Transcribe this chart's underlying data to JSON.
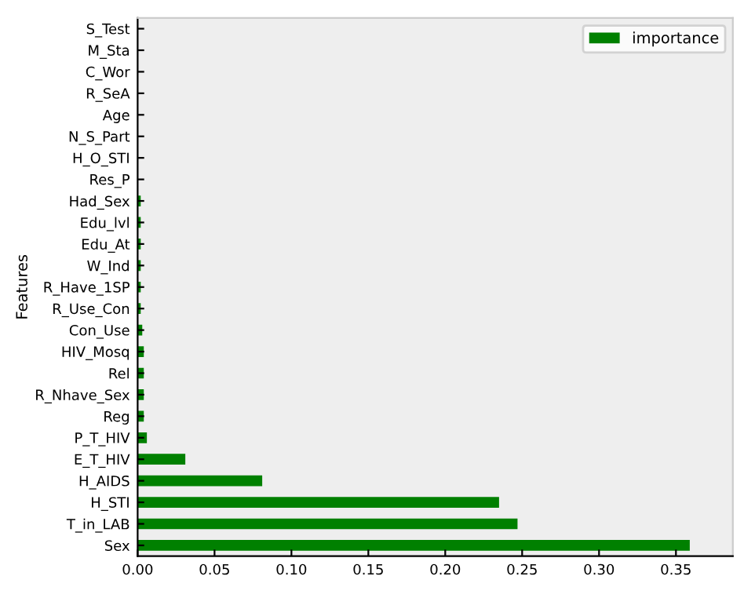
{
  "chart_data": {
    "type": "bar",
    "orientation": "horizontal",
    "ylabel": "Features",
    "legend": "top right",
    "grid": false,
    "categories": [
      "S_Test",
      "M_Sta",
      "C_Wor",
      "R_SeA",
      "Age",
      "N_S_Part",
      "H_O_STI",
      "Res_P",
      "Had_Sex",
      "Edu_lvl",
      "Edu_At",
      "W_Ind",
      "R_Have_1SP",
      "R_Use_Con",
      "Con_Use",
      "HIV_Mosq",
      "Rel",
      "R_Nhave_Sex",
      "Reg",
      "P_T_HIV",
      "E_T_HIV",
      "H_AIDS",
      "H_STI",
      "T_in_LAB",
      "Sex"
    ],
    "series": [
      {
        "name": "importance",
        "color": "#008000",
        "values": [
          0,
          0,
          0,
          0,
          0,
          0,
          0,
          0,
          0.002,
          0.002,
          0.002,
          0.002,
          0.002,
          0.002,
          0.003,
          0.004,
          0.004,
          0.004,
          0.004,
          0.006,
          0.031,
          0.081,
          0.235,
          0.247,
          0.359
        ]
      }
    ],
    "xlim": [
      0,
      0.387
    ],
    "xticks": [
      {
        "value": 0,
        "label": "0.00"
      },
      {
        "value": 0.05,
        "label": "0.05"
      },
      {
        "value": 0.1,
        "label": "0.10"
      },
      {
        "value": 0.15,
        "label": "0.15"
      },
      {
        "value": 0.2,
        "label": "0.20"
      },
      {
        "value": 0.25,
        "label": "0.25"
      },
      {
        "value": 0.3,
        "label": "0.30"
      },
      {
        "value": 0.35,
        "label": "0.35"
      }
    ]
  }
}
